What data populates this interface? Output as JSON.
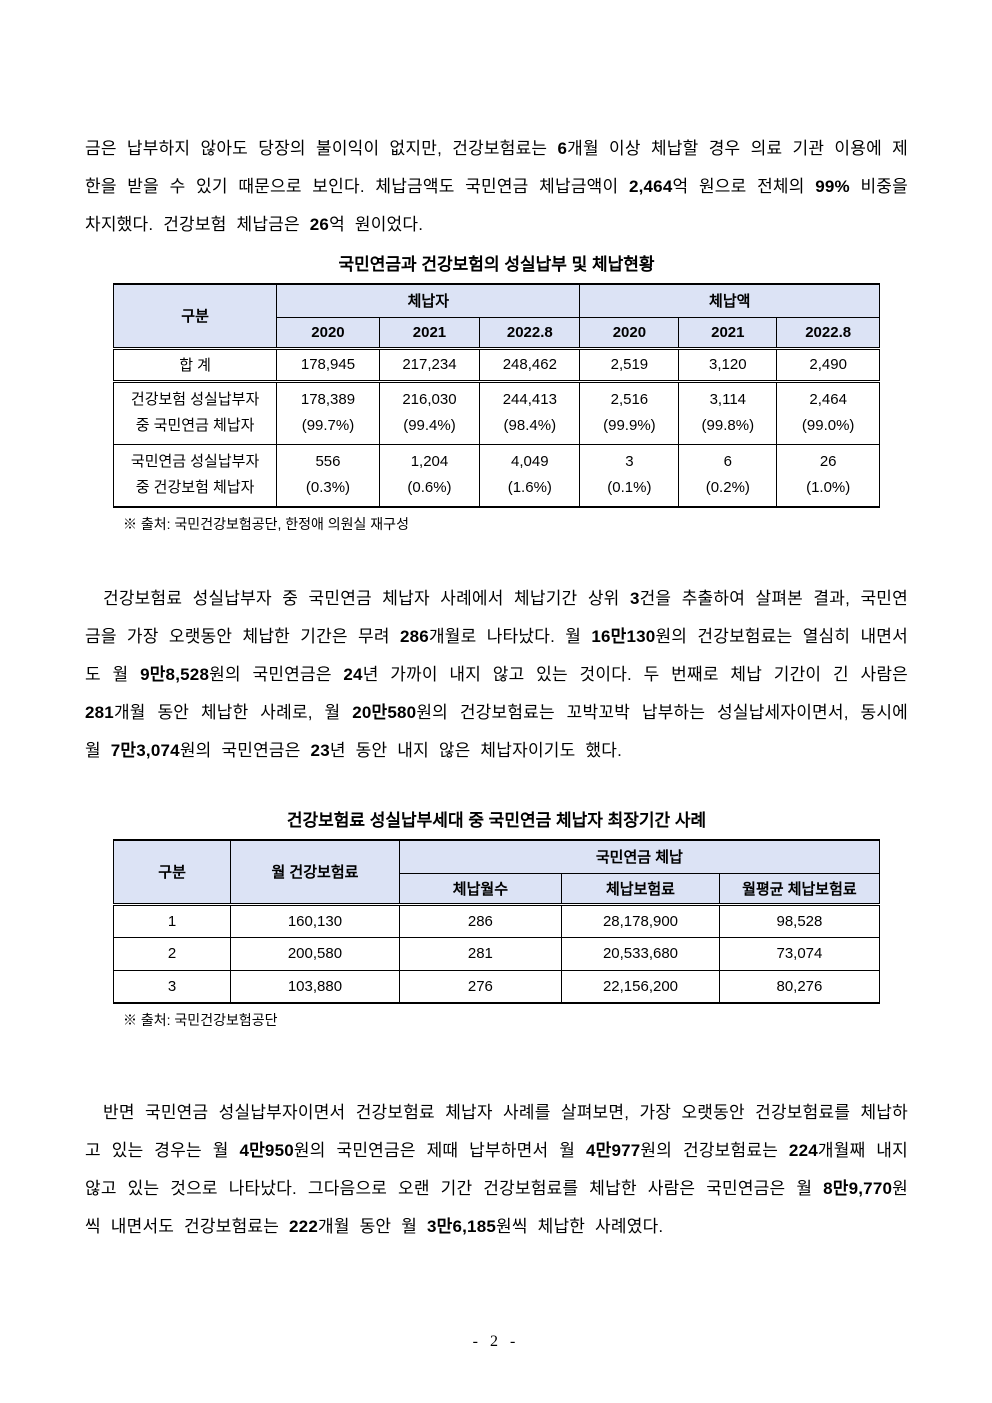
{
  "paragraphs": [
    {
      "segments": [
        {
          "t": "금은 납부하지 않아도 당장의 불이익이 없지만, 건강보험료는 ",
          "b": false
        },
        {
          "t": "6",
          "b": true
        },
        {
          "t": "개월 이상 체납할 경우 의료 기관 이용에 제한을 받을 수 있기 때문으로 보인다. 체납금액도 국민연금 체납금액이 ",
          "b": false
        },
        {
          "t": "2,464",
          "b": true
        },
        {
          "t": "억 원으로 전체의 ",
          "b": false
        },
        {
          "t": "99%",
          "b": true
        },
        {
          "t": " 비중을 차지했다. 건강보험 체납금은 ",
          "b": false
        },
        {
          "t": "26",
          "b": true
        },
        {
          "t": "억 원이었다.",
          "b": false
        }
      ]
    },
    {
      "segments": [
        {
          "t": "건강보험료 성실납부자 중 국민연금 체납자 사례에서 체납기간 상위 ",
          "b": false
        },
        {
          "t": "3",
          "b": true
        },
        {
          "t": "건을 추출하여 살펴본 결과, 국민연금을 가장 오랫동안 체납한 기간은 무려 ",
          "b": false
        },
        {
          "t": "286",
          "b": true
        },
        {
          "t": "개월로 나타났다. 월 ",
          "b": false
        },
        {
          "t": "16만130",
          "b": true
        },
        {
          "t": "원의 건강보험료는 열심히 내면서도 월 ",
          "b": false
        },
        {
          "t": "9만8,528",
          "b": true
        },
        {
          "t": "원의 국민연금은 ",
          "b": false
        },
        {
          "t": "24",
          "b": true
        },
        {
          "t": "년 가까이 내지 않고 있는 것이다. 두 번째로 체납 기간이 긴 사람은 ",
          "b": false
        },
        {
          "t": "281",
          "b": true
        },
        {
          "t": "개월 동안 체납한 사례로, 월 ",
          "b": false
        },
        {
          "t": "20만580",
          "b": true
        },
        {
          "t": "원의 건강보험료는 꼬박꼬박 납부하는 성실납세자이면서, 동시에 월 ",
          "b": false
        },
        {
          "t": "7만3,074",
          "b": true
        },
        {
          "t": "원의 국민연금은 ",
          "b": false
        },
        {
          "t": "23",
          "b": true
        },
        {
          "t": "년 동안 내지 않은 체납자이기도 했다.",
          "b": false
        }
      ]
    },
    {
      "segments": [
        {
          "t": "반면 국민연금 성실납부자이면서 건강보험료 체납자 사례를 살펴보면, 가장 오랫동안 건강보험료를 체납하고 있는 경우는 월 ",
          "b": false
        },
        {
          "t": "4만950",
          "b": true
        },
        {
          "t": "원의 국민연금은 제때 납부하면서 월 ",
          "b": false
        },
        {
          "t": "4만977",
          "b": true
        },
        {
          "t": "원의 건강보험료는 ",
          "b": false
        },
        {
          "t": "224",
          "b": true
        },
        {
          "t": "개월째 내지 않고 있는 것으로 나타났다. 그다음으로 오랜 기간 건강보험료를 체납한 사람은 국민연금은 월 ",
          "b": false
        },
        {
          "t": "8만9,770",
          "b": true
        },
        {
          "t": "원씩 내면서도 건강보험료는 ",
          "b": false
        },
        {
          "t": "222",
          "b": true
        },
        {
          "t": "개월 동안 월 ",
          "b": false
        },
        {
          "t": "3만6,185",
          "b": true
        },
        {
          "t": "원씩 체납한 사례였다.",
          "b": false
        }
      ]
    }
  ],
  "table1": {
    "title": "국민연금과 건강보험의 성실납부 및 체납현황",
    "headers": {
      "gubun": "구분",
      "group1": "체납자",
      "group2": "체납액"
    },
    "years": [
      "2020",
      "2021",
      "2022.8"
    ],
    "rows": [
      {
        "label": "합 계",
        "values": [
          "178,945",
          "217,234",
          "248,462",
          "2,519",
          "3,120",
          "2,490"
        ]
      },
      {
        "label1": "건강보험 성실납부자",
        "label2": "중 국민연금 체납자",
        "values": [
          "178,389",
          "216,030",
          "244,413",
          "2,516",
          "3,114",
          "2,464"
        ],
        "pcts": [
          "(99.7%)",
          "(99.4%)",
          "(98.4%)",
          "(99.9%)",
          "(99.8%)",
          "(99.0%)"
        ]
      },
      {
        "label1": "국민연금 성실납부자",
        "label2": "중 건강보험 체납자",
        "values": [
          "556",
          "1,204",
          "4,049",
          "3",
          "6",
          "26"
        ],
        "pcts": [
          "(0.3%)",
          "(0.6%)",
          "(1.6%)",
          "(0.1%)",
          "(0.2%)",
          "(1.0%)"
        ]
      }
    ],
    "source": "※ 출처: 국민건강보험공단, 한정애 의원실 재구성"
  },
  "table2": {
    "title": "건강보험료 성실납부세대 중 국민연금 체납자 최장기간 사례",
    "headers": {
      "gubun": "구분",
      "monthly": "월 건강보험료",
      "group": "국민연금 체납",
      "months": "체납월수",
      "arrears": "체납보험료",
      "avg": "월평균 체납보험료"
    },
    "rows": [
      {
        "no": "1",
        "monthly": "160,130",
        "months": "286",
        "arrears": "28,178,900",
        "avg": "98,528"
      },
      {
        "no": "2",
        "monthly": "200,580",
        "months": "281",
        "arrears": "20,533,680",
        "avg": "73,074"
      },
      {
        "no": "3",
        "monthly": "103,880",
        "months": "276",
        "arrears": "22,156,200",
        "avg": "80,276"
      }
    ],
    "source": "※ 출처: 국민건강보험공단"
  },
  "footer": {
    "page_label": "- 2 -"
  },
  "colors": {
    "table_header_bg": "#dce3f5",
    "text": "#000000",
    "page_bg": "#ffffff"
  }
}
